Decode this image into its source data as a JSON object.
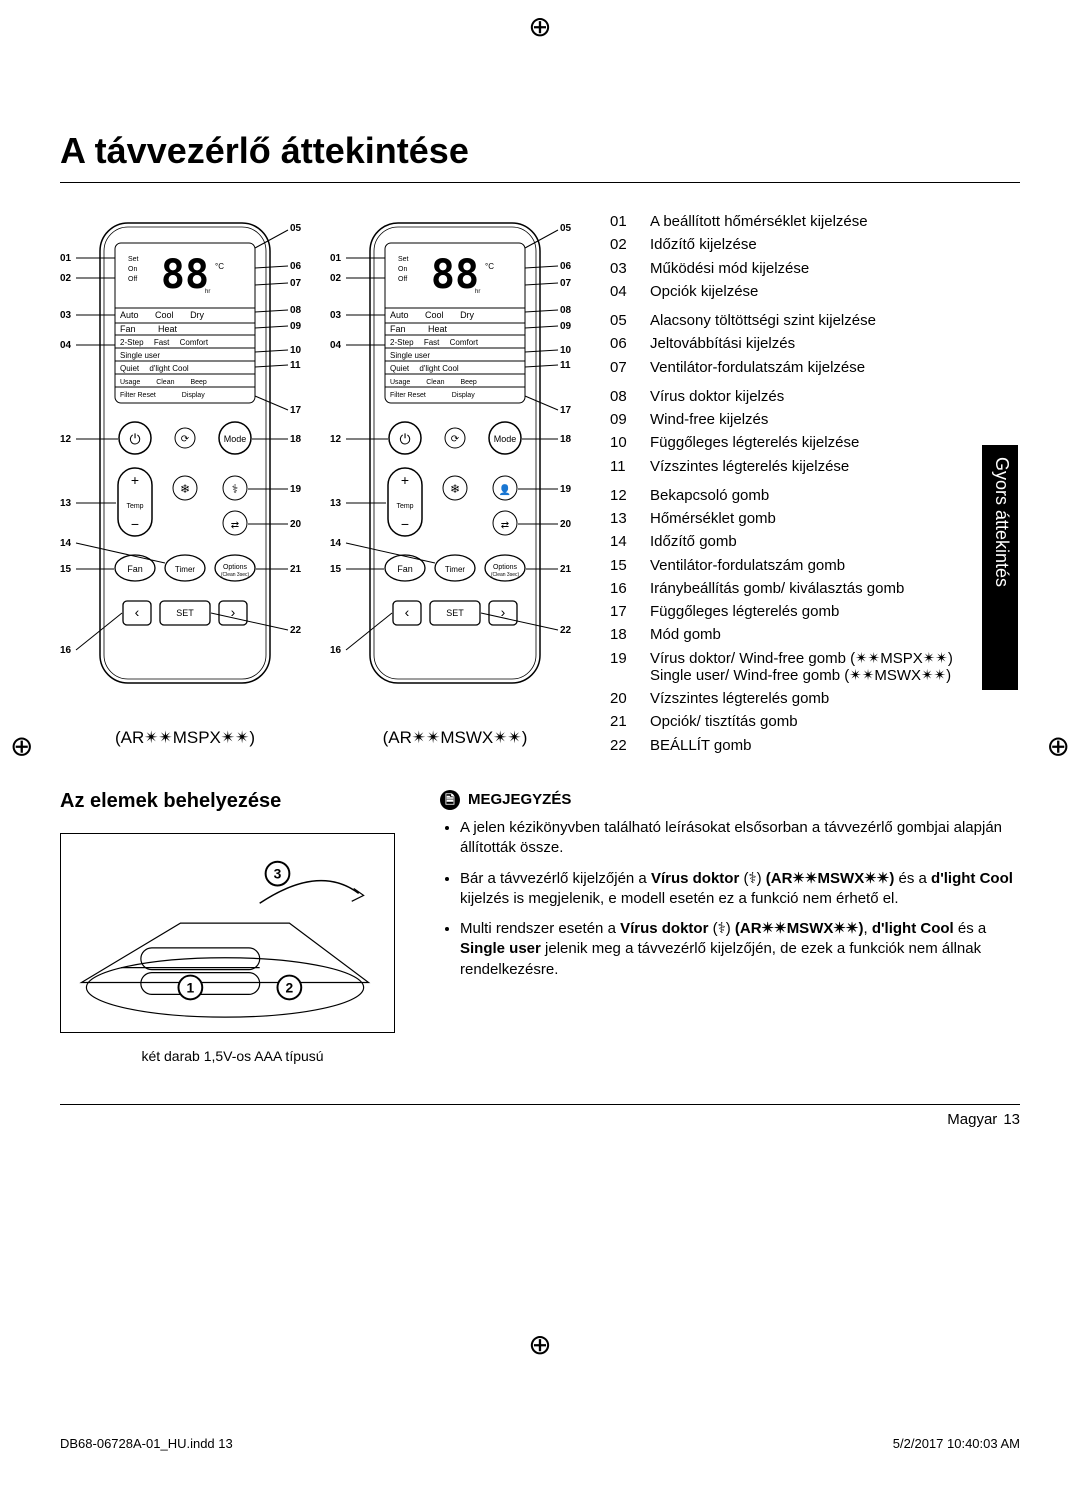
{
  "title": "A távvezérlő áttekintése",
  "side_tab": "Gyors áttekintés",
  "remote_a": {
    "model": "(AR✴✴MSPX✴✴)",
    "display_rows": [
      "Set",
      "On",
      "Off"
    ],
    "mode_row1": [
      "Auto",
      "Cool",
      "Dry"
    ],
    "mode_row2": [
      "Fan",
      "Heat"
    ],
    "mode_row3": [
      "2-Step",
      "Fast",
      "Comfort"
    ],
    "mode_row4": [
      "Single user"
    ],
    "mode_row5": [
      "Quiet",
      "d'light Cool"
    ],
    "mode_row6": [
      "Usage",
      "Clean",
      "Beep"
    ],
    "mode_row7": [
      "Filter Reset",
      "Display"
    ],
    "btn_power": "⏻",
    "btn_mode": "Mode",
    "btn_temp": "Temp",
    "btn_fan": "Fan",
    "btn_timer": "Timer",
    "btn_options": "Options",
    "btn_options_sub": "(Clean 3sec)",
    "btn_set": "SET",
    "callouts_left": [
      "01",
      "02",
      "03",
      "04",
      "12",
      "13",
      "14",
      "15",
      "16"
    ],
    "callouts_right": [
      "05",
      "06",
      "07",
      "08",
      "09",
      "10",
      "11",
      "17",
      "18",
      "19",
      "20",
      "21",
      "22"
    ]
  },
  "remote_b": {
    "model": "(AR✴✴MSWX✴✴)",
    "display_rows": [
      "Set",
      "On",
      "Off"
    ],
    "mode_row1": [
      "Auto",
      "Cool",
      "Dry"
    ],
    "mode_row2": [
      "Fan",
      "Heat"
    ],
    "mode_row3": [
      "2-Step",
      "Fast",
      "Comfort"
    ],
    "mode_row4": [
      "Single user"
    ],
    "mode_row5": [
      "Quiet",
      "d'light Cool"
    ],
    "mode_row6": [
      "Usage",
      "Clean",
      "Beep"
    ],
    "mode_row7": [
      "Filter Reset",
      "Display"
    ],
    "btn_power": "⏻",
    "btn_mode": "Mode",
    "btn_temp": "Temp",
    "btn_fan": "Fan",
    "btn_timer": "Timer",
    "btn_options": "Options",
    "btn_options_sub": "(Clean 3sec)",
    "btn_set": "SET",
    "callouts_left": [
      "01",
      "02",
      "03",
      "04",
      "12",
      "13",
      "14",
      "15",
      "16"
    ],
    "callouts_right": [
      "05",
      "06",
      "07",
      "08",
      "09",
      "10",
      "11",
      "17",
      "18",
      "19",
      "20",
      "21",
      "22"
    ]
  },
  "legend": [
    {
      "n": "01",
      "t": "A beállított hőmérséklet kijelzése"
    },
    {
      "n": "02",
      "t": "Időzítő kijelzése"
    },
    {
      "n": "03",
      "t": "Működési mód kijelzése"
    },
    {
      "n": "04",
      "t": "Opciók kijelzése"
    },
    {
      "n": "05",
      "t": "Alacsony töltöttségi szint kijelzése",
      "gap": true
    },
    {
      "n": "06",
      "t": "Jeltovábbítási kijelzés"
    },
    {
      "n": "07",
      "t": "Ventilátor-fordulatszám kijelzése"
    },
    {
      "n": "08",
      "t": "Vírus doktor kijelzés",
      "gap": true
    },
    {
      "n": "09",
      "t": "Wind-free kijelzés"
    },
    {
      "n": "10",
      "t": "Függőleges légterelés kijelzése"
    },
    {
      "n": "11",
      "t": "Vízszintes légterelés kijelzése"
    },
    {
      "n": "12",
      "t": "Bekapcsoló gomb",
      "gap": true
    },
    {
      "n": "13",
      "t": "Hőmérséklet gomb"
    },
    {
      "n": "14",
      "t": "Időzítő gomb"
    },
    {
      "n": "15",
      "t": "Ventilátor-fordulatszám gomb"
    },
    {
      "n": "16",
      "t": "Iránybeállítás gomb/ kiválasztás gomb"
    },
    {
      "n": "17",
      "t": "Függőleges légterelés gomb"
    },
    {
      "n": "18",
      "t": "Mód gomb"
    },
    {
      "n": "19",
      "t": "Vírus doktor/ Wind-free gomb (✴✴MSPX✴✴) Single user/ Wind-free gomb (✴✴MSWX✴✴)"
    },
    {
      "n": "20",
      "t": "Vízszintes légterelés gomb"
    },
    {
      "n": "21",
      "t": "Opciók/ tisztítás gomb"
    },
    {
      "n": "22",
      "t": "BEÁLLÍT gomb"
    }
  ],
  "battery": {
    "title": "Az elemek behelyezése",
    "caption": "két darab 1,5V-os AAA típusú",
    "steps": [
      "1",
      "2",
      "3"
    ]
  },
  "note": {
    "heading": "MEGJEGYZÉS",
    "items": [
      "A jelen kézikönyvben található leírásokat elsősorban a távvezérlő gombjai alapján állították össze.",
      "Bár a távvezérlő kijelzőjén a <b>Vírus doktor</b> (⚕) <b>(AR✴✴MSWX✴✴)</b> és a <b>d'light Cool</b> kijelzés is megjelenik, e modell esetén ez a funkció nem érhető el.",
      "Multi rendszer esetén a <b>Vírus doktor</b> (⚕) <b>(AR✴✴MSWX✴✴)</b>, <b>d'light Cool</b> és a <b>Single user</b> jelenik meg a távvezérlő kijelzőjén, de ezek a funkciók nem állnak rendelkezésre."
    ]
  },
  "footer": {
    "lang": "Magyar",
    "page": "13"
  },
  "meta": {
    "file": "DB68-06728A-01_HU.indd   13",
    "time": "5/2/2017   10:40:03 AM"
  },
  "colors": {
    "text": "#000000",
    "bg": "#ffffff",
    "tab_bg": "#000000",
    "tab_fg": "#ffffff",
    "stroke": "#000000"
  },
  "fonts": {
    "title": 36,
    "body": 15,
    "legend": 15,
    "model": 17
  }
}
